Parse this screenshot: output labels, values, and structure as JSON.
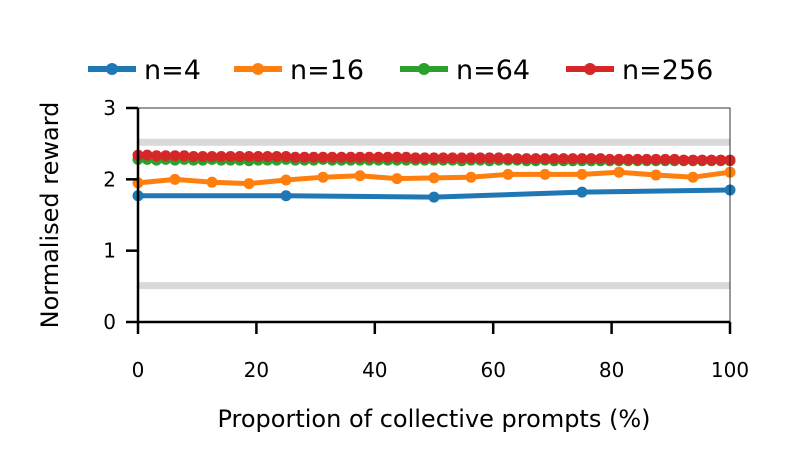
{
  "chart_data": {
    "type": "line",
    "xlabel": "Proportion of collective prompts (%)",
    "ylabel": "Normalised reward",
    "xlim": [
      0,
      100
    ],
    "ylim": [
      0,
      3
    ],
    "xticks": [
      "0",
      "20",
      "40",
      "60",
      "80",
      "100"
    ],
    "yticks": [
      "0",
      "1",
      "2",
      "3"
    ],
    "grid": false,
    "legend_position": "top",
    "reference_lines": [
      {
        "y": 2.52,
        "color": "#d9d9d9"
      },
      {
        "y": 0.51,
        "color": "#d9d9d9"
      }
    ],
    "series": [
      {
        "name": "n=4",
        "color": "#1f77b4",
        "x": [
          0,
          25,
          50,
          75,
          100
        ],
        "y": [
          1.77,
          1.77,
          1.75,
          1.82,
          1.85
        ]
      },
      {
        "name": "n=16",
        "color": "#ff7f0e",
        "x": [
          0,
          6.25,
          12.5,
          18.75,
          25,
          31.25,
          37.5,
          43.75,
          50,
          56.25,
          62.5,
          68.75,
          75,
          81.25,
          87.5,
          93.75,
          100
        ],
        "y": [
          1.95,
          2.0,
          1.96,
          1.94,
          1.99,
          2.03,
          2.05,
          2.01,
          2.02,
          2.03,
          2.07,
          2.07,
          2.07,
          2.1,
          2.06,
          2.03,
          2.1
        ]
      },
      {
        "name": "n=64",
        "color": "#2ca02c",
        "x": [
          0,
          1.56,
          3.13,
          4.69,
          6.25,
          7.81,
          9.38,
          10.94,
          12.5,
          14.06,
          15.63,
          17.19,
          18.75,
          20.31,
          21.88,
          23.44,
          25,
          26.56,
          28.13,
          29.69,
          31.25,
          32.81,
          34.38,
          35.94,
          37.5,
          39.06,
          40.63,
          42.19,
          43.75,
          45.31,
          46.88,
          48.44,
          50,
          51.56,
          53.13,
          54.69,
          56.25,
          57.81,
          59.38,
          60.94,
          62.5,
          64.06,
          65.63,
          67.19,
          68.75,
          70.31,
          71.88,
          73.44,
          75,
          76.56,
          78.13,
          79.69,
          81.25,
          82.81,
          84.38,
          85.94,
          87.5,
          89.06,
          90.63,
          92.19,
          93.75,
          95.31,
          96.88,
          98.44,
          100
        ],
        "y": [
          2.28,
          2.28,
          2.27,
          2.28,
          2.27,
          2.28,
          2.27,
          2.27,
          2.28,
          2.27,
          2.27,
          2.27,
          2.26,
          2.27,
          2.27,
          2.27,
          2.28,
          2.27,
          2.27,
          2.27,
          2.28,
          2.27,
          2.27,
          2.27,
          2.27,
          2.27,
          2.27,
          2.27,
          2.27,
          2.27,
          2.27,
          2.27,
          2.27,
          2.27,
          2.27,
          2.26,
          2.27,
          2.27,
          2.26,
          2.27,
          2.27,
          2.27,
          2.26,
          2.26,
          2.27,
          2.26,
          2.26,
          2.26,
          2.26,
          2.26,
          2.26,
          2.26,
          2.26,
          2.26,
          2.26,
          2.26,
          2.26,
          2.26,
          2.26,
          2.26,
          2.26,
          2.26,
          2.26,
          2.26,
          2.26
        ]
      },
      {
        "name": "n=256",
        "color": "#d62728",
        "x": [
          0,
          1.56,
          3.13,
          4.69,
          6.25,
          7.81,
          9.38,
          10.94,
          12.5,
          14.06,
          15.63,
          17.19,
          18.75,
          20.31,
          21.88,
          23.44,
          25,
          26.56,
          28.13,
          29.69,
          31.25,
          32.81,
          34.38,
          35.94,
          37.5,
          39.06,
          40.63,
          42.19,
          43.75,
          45.31,
          46.88,
          48.44,
          50,
          51.56,
          53.13,
          54.69,
          56.25,
          57.81,
          59.38,
          60.94,
          62.5,
          64.06,
          65.63,
          67.19,
          68.75,
          70.31,
          71.88,
          73.44,
          75,
          76.56,
          78.13,
          79.69,
          81.25,
          82.81,
          84.38,
          85.94,
          87.5,
          89.06,
          90.63,
          92.19,
          93.75,
          95.31,
          96.88,
          98.44,
          100
        ],
        "y": [
          2.34,
          2.34,
          2.33,
          2.33,
          2.33,
          2.33,
          2.32,
          2.32,
          2.32,
          2.32,
          2.32,
          2.32,
          2.32,
          2.32,
          2.32,
          2.32,
          2.32,
          2.31,
          2.31,
          2.31,
          2.31,
          2.31,
          2.31,
          2.31,
          2.31,
          2.31,
          2.31,
          2.31,
          2.31,
          2.31,
          2.3,
          2.3,
          2.3,
          2.3,
          2.3,
          2.3,
          2.3,
          2.3,
          2.3,
          2.3,
          2.29,
          2.29,
          2.29,
          2.29,
          2.29,
          2.29,
          2.29,
          2.29,
          2.29,
          2.29,
          2.29,
          2.28,
          2.28,
          2.28,
          2.28,
          2.28,
          2.28,
          2.28,
          2.28,
          2.27,
          2.27,
          2.27,
          2.27,
          2.27,
          2.27
        ]
      }
    ]
  }
}
